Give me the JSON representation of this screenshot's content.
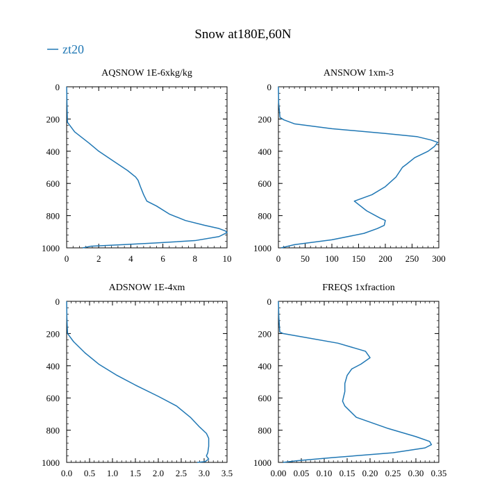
{
  "title": "Snow at180E,60N",
  "legend": {
    "label": "zt20",
    "color": "#1f77b4"
  },
  "chart_data": [
    {
      "type": "line",
      "title": "AQSNOW  1E-6xkg/kg",
      "xlim": [
        0,
        10
      ],
      "ylim": [
        1000,
        0
      ],
      "xticks": [
        0,
        2,
        4,
        6,
        8,
        10
      ],
      "xtick_labels": [
        "0",
        "2",
        "4",
        "6",
        "8",
        "10"
      ],
      "yticks": [
        0,
        200,
        400,
        600,
        800,
        1000
      ],
      "ytick_labels": [
        "0",
        "200",
        "400",
        "600",
        "800",
        "1000"
      ],
      "series": [
        {
          "name": "zt20",
          "x": [
            0.0,
            0.02,
            0.05,
            0.5,
            1.4,
            2.0,
            2.9,
            3.8,
            4.3,
            4.45,
            4.6,
            4.8,
            5.0,
            5.6,
            6.4,
            7.4,
            8.6,
            9.5,
            9.9,
            10.0,
            9.5,
            8.0,
            5.5,
            3.5,
            1.5,
            1.0
          ],
          "y": [
            0,
            100,
            220,
            280,
            350,
            400,
            460,
            520,
            560,
            580,
            620,
            670,
            710,
            740,
            790,
            830,
            860,
            880,
            895,
            905,
            930,
            955,
            970,
            980,
            990,
            1000
          ]
        }
      ]
    },
    {
      "type": "line",
      "title": "ANSNOW  1xm-3",
      "xlim": [
        0,
        300
      ],
      "ylim": [
        1000,
        0
      ],
      "xticks": [
        0,
        50,
        100,
        150,
        200,
        250,
        300
      ],
      "xtick_labels": [
        "0",
        "50",
        "100",
        "150",
        "200",
        "250",
        "300"
      ],
      "yticks": [
        0,
        200,
        400,
        600,
        800,
        1000
      ],
      "ytick_labels": [
        "0",
        "200",
        "400",
        "600",
        "800",
        "1000"
      ],
      "series": [
        {
          "name": "zt20",
          "x": [
            0,
            0.5,
            3,
            10,
            30,
            100,
            200,
            260,
            285,
            298,
            292,
            280,
            255,
            240,
            232,
            220,
            200,
            175,
            142,
            165,
            190,
            200,
            198,
            185,
            160,
            100,
            30,
            5
          ],
          "y": [
            0,
            100,
            190,
            205,
            230,
            260,
            290,
            310,
            330,
            345,
            370,
            400,
            440,
            480,
            500,
            560,
            620,
            670,
            710,
            770,
            815,
            830,
            860,
            880,
            910,
            950,
            980,
            1000
          ]
        }
      ]
    },
    {
      "type": "line",
      "title": "ADSNOW  1E-4xm",
      "xlim": [
        0,
        3.5
      ],
      "ylim": [
        1000,
        0
      ],
      "xticks": [
        0,
        0.5,
        1.0,
        1.5,
        2.0,
        2.5,
        3.0,
        3.5
      ],
      "xtick_labels": [
        "0.0",
        "0.5",
        "1.0",
        "1.5",
        "2.0",
        "2.5",
        "3.0",
        "3.5"
      ],
      "yticks": [
        0,
        200,
        400,
        600,
        800,
        1000
      ],
      "ytick_labels": [
        "0",
        "200",
        "400",
        "600",
        "800",
        "1000"
      ],
      "series": [
        {
          "name": "zt20",
          "x": [
            0.0,
            0.005,
            0.02,
            0.15,
            0.4,
            0.7,
            1.1,
            1.5,
            2.0,
            2.4,
            2.7,
            2.9,
            3.05,
            3.1,
            3.1,
            3.08,
            3.05,
            3.1,
            3.02,
            2.85
          ],
          "y": [
            0,
            100,
            200,
            250,
            320,
            390,
            460,
            520,
            590,
            650,
            720,
            780,
            820,
            850,
            900,
            940,
            960,
            980,
            995,
            1000
          ]
        }
      ]
    },
    {
      "type": "line",
      "title": "FREQS  1xfraction",
      "xlim": [
        0,
        0.35
      ],
      "ylim": [
        1000,
        0
      ],
      "xticks": [
        0,
        0.05,
        0.1,
        0.15,
        0.2,
        0.25,
        0.3,
        0.35
      ],
      "xtick_labels": [
        "0.00",
        "0.05",
        "0.10",
        "0.15",
        "0.20",
        "0.25",
        "0.30",
        "0.35"
      ],
      "yticks": [
        0,
        200,
        400,
        600,
        800,
        1000
      ],
      "ytick_labels": [
        "0",
        "200",
        "400",
        "600",
        "800",
        "1000"
      ],
      "series": [
        {
          "name": "zt20",
          "x": [
            0.0,
            0.001,
            0.003,
            0.01,
            0.05,
            0.13,
            0.19,
            0.2,
            0.18,
            0.16,
            0.15,
            0.145,
            0.145,
            0.14,
            0.145,
            0.17,
            0.24,
            0.3,
            0.33,
            0.334,
            0.32,
            0.25,
            0.12,
            0.04,
            0.01
          ],
          "y": [
            0,
            100,
            190,
            200,
            220,
            260,
            310,
            350,
            390,
            420,
            460,
            510,
            560,
            620,
            650,
            720,
            790,
            840,
            870,
            890,
            910,
            940,
            970,
            990,
            1000
          ]
        }
      ]
    }
  ]
}
